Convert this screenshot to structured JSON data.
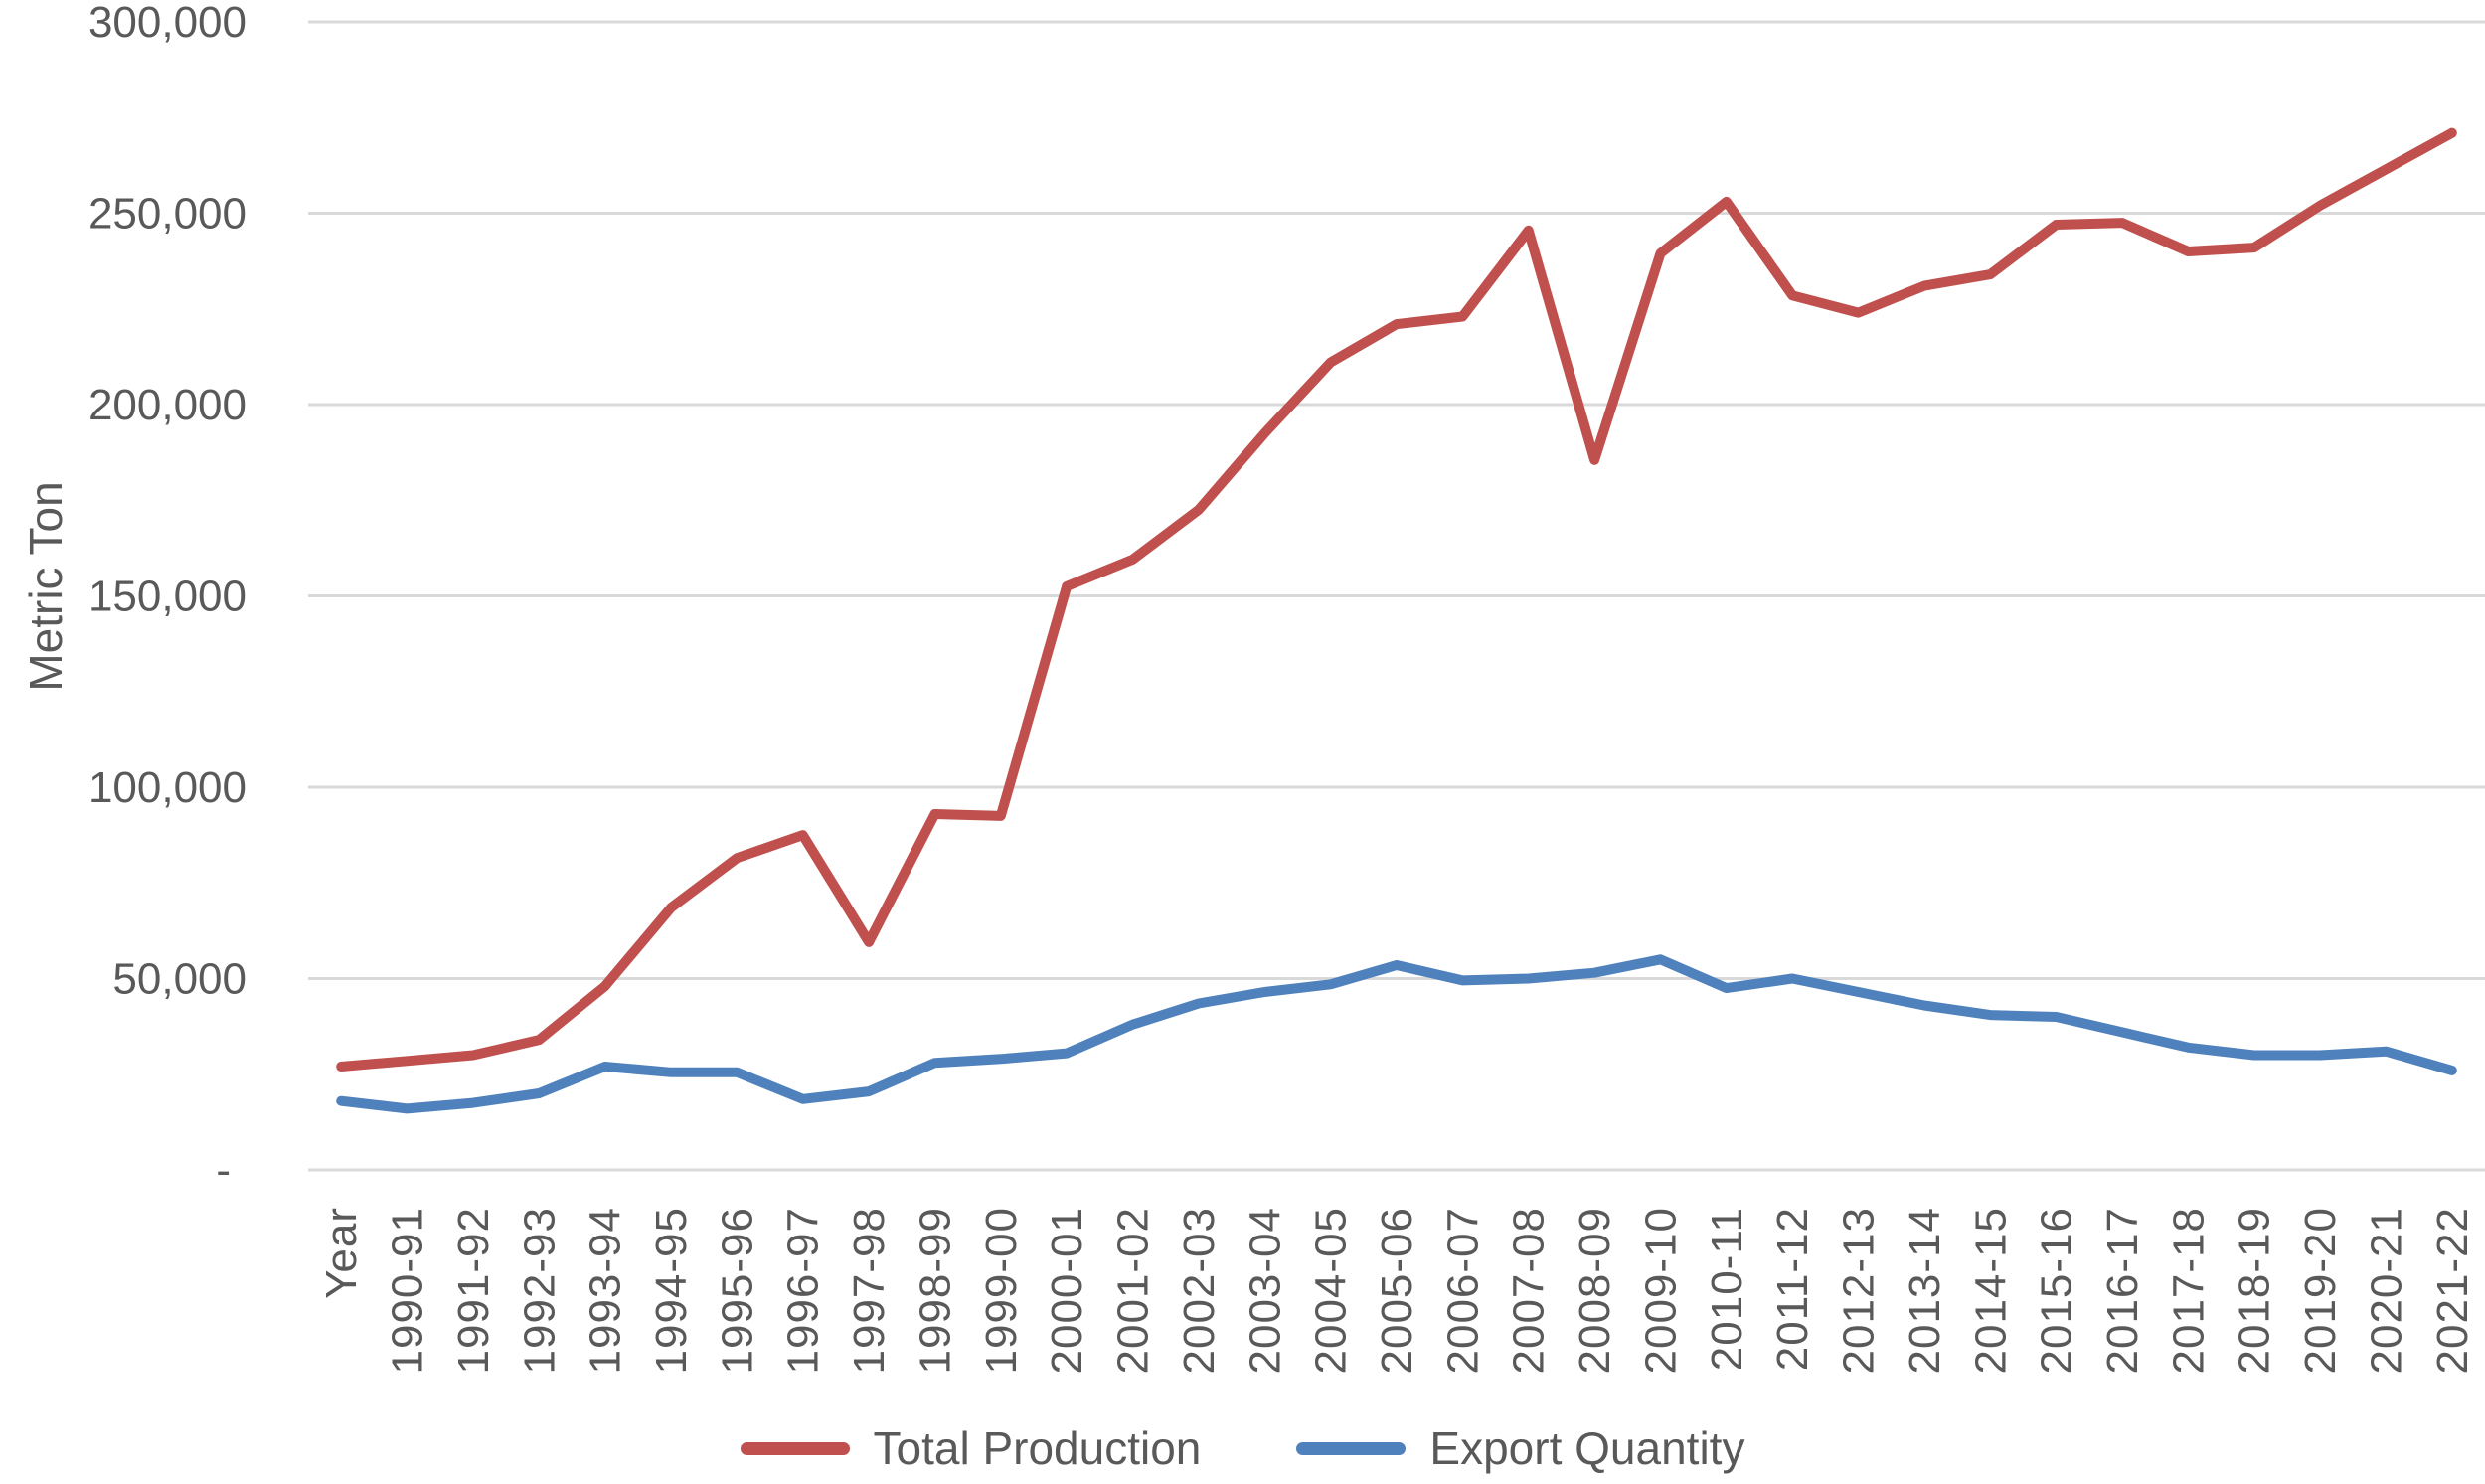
{
  "page": {
    "background": "#FFFFFF"
  },
  "chart_data": {
    "type": "line",
    "title": "",
    "xlabel": "",
    "ylabel": "Metric Ton",
    "categories": [
      "Year",
      "1990-91",
      "1991-92",
      "1992-93",
      "1993-94",
      "1994-95",
      "1995-96",
      "1996-97",
      "1997-98",
      "1998-99",
      "1999-00",
      "2000-01",
      "2001-02",
      "2002-03",
      "2003-04",
      "2004-05",
      "2005-06",
      "2006-07",
      "2007-08",
      "2008-09",
      "2009-10",
      "2010-11",
      "2011-12",
      "2012-13",
      "2013-14",
      "2014-15",
      "2015-16",
      "2016-17",
      "2017-18",
      "2018-19",
      "2019-20",
      "2020-21",
      "2021-22"
    ],
    "series": [
      {
        "name": "Total Production",
        "color": "#C0504D",
        "values": [
          27000,
          28500,
          30000,
          34000,
          48000,
          68500,
          81500,
          87500,
          59500,
          93000,
          92500,
          152500,
          159500,
          172500,
          192500,
          211000,
          221000,
          223000,
          245500,
          185500,
          239500,
          253000,
          228500,
          224000,
          231000,
          234000,
          247000,
          247500,
          240000,
          241000,
          252000,
          261500,
          271000
        ]
      },
      {
        "name": "Export Quantity",
        "color": "#4F81BD",
        "values": [
          18000,
          16000,
          17500,
          20000,
          27000,
          25500,
          25500,
          18500,
          20500,
          28000,
          29000,
          30500,
          38000,
          43500,
          46500,
          48500,
          53500,
          49500,
          50000,
          51500,
          55000,
          47500,
          50000,
          46500,
          43000,
          40500,
          40000,
          36000,
          32000,
          30000,
          30000,
          31000,
          26000
        ]
      }
    ],
    "ylim": [
      0,
      300000
    ],
    "y_tick_step": 50000,
    "y_tick_labels": [
      "-",
      "50,000",
      "100,000",
      "150,000",
      "200,000",
      "250,000",
      "300,000"
    ],
    "grid": true,
    "gridline_color": "#D9D9D9",
    "text_color": "#595959",
    "legend_position": "bottom",
    "x_label_rotation": -90
  }
}
